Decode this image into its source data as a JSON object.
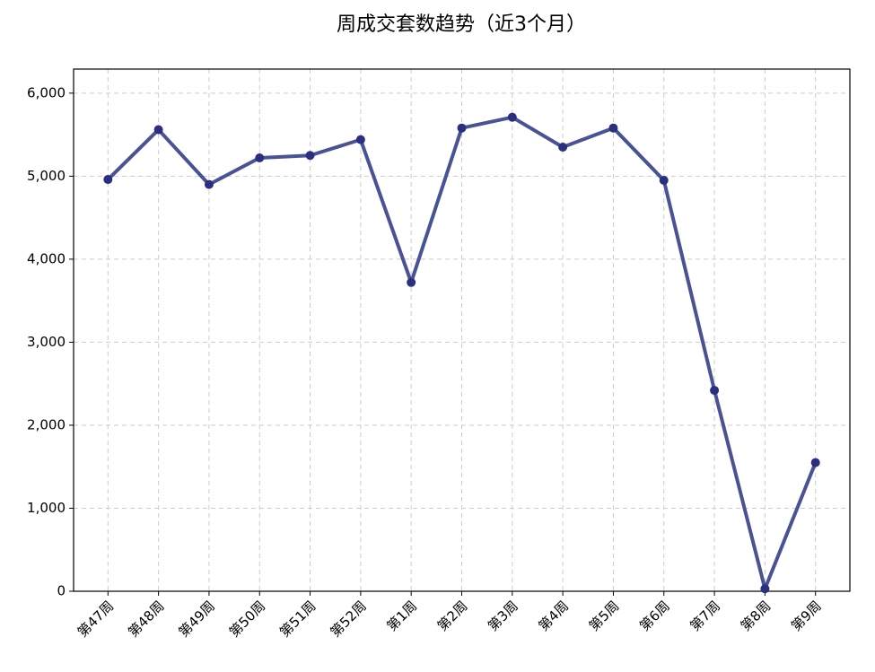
{
  "chart_data": {
    "type": "line",
    "title": "周成交套数趋势（近3个月）",
    "categories": [
      "第47周",
      "第48周",
      "第49周",
      "第50周",
      "第51周",
      "第52周",
      "第1周",
      "第2周",
      "第3周",
      "第4周",
      "第5周",
      "第6周",
      "第7周",
      "第8周",
      "第9周"
    ],
    "values": [
      4960,
      5560,
      4900,
      5220,
      5250,
      5440,
      3720,
      5580,
      5710,
      5350,
      5580,
      4950,
      2420,
      30,
      1550
    ],
    "color": "#4a5296",
    "marker_color": "#2b2f80",
    "ylim": [
      0,
      6290
    ],
    "yticks": [
      0,
      {
        "value": 1000,
        "label": "1,000"
      },
      {
        "value": 2000,
        "label": "2,000"
      },
      {
        "value": 3000,
        "label": "3,000"
      },
      {
        "value": 4000,
        "label": "4,000"
      },
      {
        "value": 5000,
        "label": "5,000"
      },
      {
        "value": 6000,
        "label": "6,000"
      }
    ],
    "grid": true
  }
}
